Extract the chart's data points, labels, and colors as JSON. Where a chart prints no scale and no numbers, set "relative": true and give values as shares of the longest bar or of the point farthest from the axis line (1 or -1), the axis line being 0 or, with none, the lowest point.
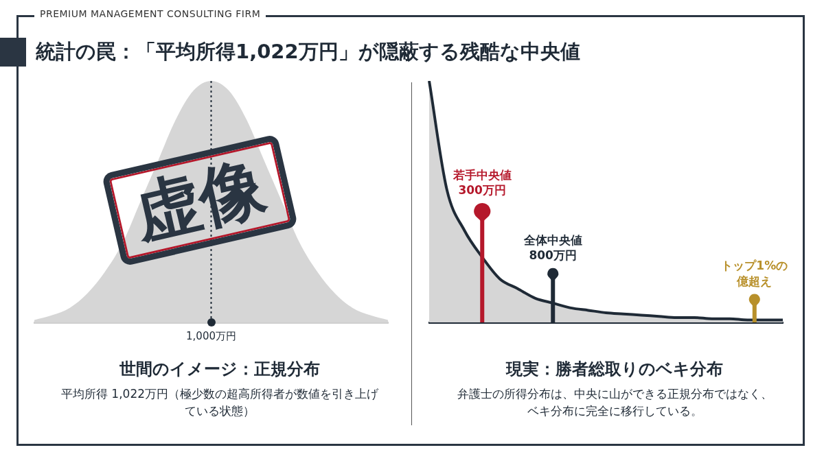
{
  "chart_data": [
    {
      "type": "other",
      "title": "統計の罠：「平均所得1,022万円」が隠蔽する残酷な中央値",
      "subtitle": "PREMIUM MANAGEMENT CONSULTING FIRM"
    },
    {
      "type": "area",
      "relative": true,
      "title": "世間のイメージ：正規分布",
      "subtitle": "平均所得 1,022万円（極少数の超高所得者が数値を引き上げている状態）",
      "categories": [
        null,
        null,
        null,
        null,
        null,
        null,
        null,
        null,
        null,
        null,
        null,
        null,
        null,
        null,
        null,
        null,
        null,
        null,
        null,
        null,
        null
      ],
      "series": [
        {
          "color": "#d6d6d6",
          "values": [
            0.01,
            0.03,
            0.06,
            0.12,
            0.21,
            0.33,
            0.5,
            0.67,
            0.84,
            0.96,
            1,
            0.96,
            0.84,
            0.67,
            0.5,
            0.33,
            0.21,
            0.12,
            0.06,
            0.03,
            0.01
          ]
        }
      ],
      "annotations": [
        "虚像",
        "1,000万円"
      ]
    },
    {
      "type": "area",
      "relative": true,
      "title": "現実：勝者総取りのベキ分布",
      "subtitle": "弁護士の所得分布は、中央に山ができる正規分布ではなく、ベキ分布に完全に移行している。",
      "categories": [
        null,
        null,
        null,
        null,
        null,
        null,
        null,
        null,
        null,
        null,
        null,
        null,
        null,
        null,
        null,
        null,
        null,
        null,
        null,
        null,
        null
      ],
      "series": [
        {
          "color": "#1f2a36",
          "values": [
            1,
            0.55,
            0.38,
            0.27,
            0.18,
            0.14,
            0.1,
            0.08,
            0.06,
            0.05,
            0.04,
            0.035,
            0.03,
            0.025,
            0.02,
            0.02,
            0.015,
            0.015,
            0.01,
            0.01,
            0.01
          ]
        }
      ],
      "annotations": [
        "若手中央値300万円",
        "全体中央値800万円",
        "トップ1%の億超え"
      ]
    }
  ]
}
